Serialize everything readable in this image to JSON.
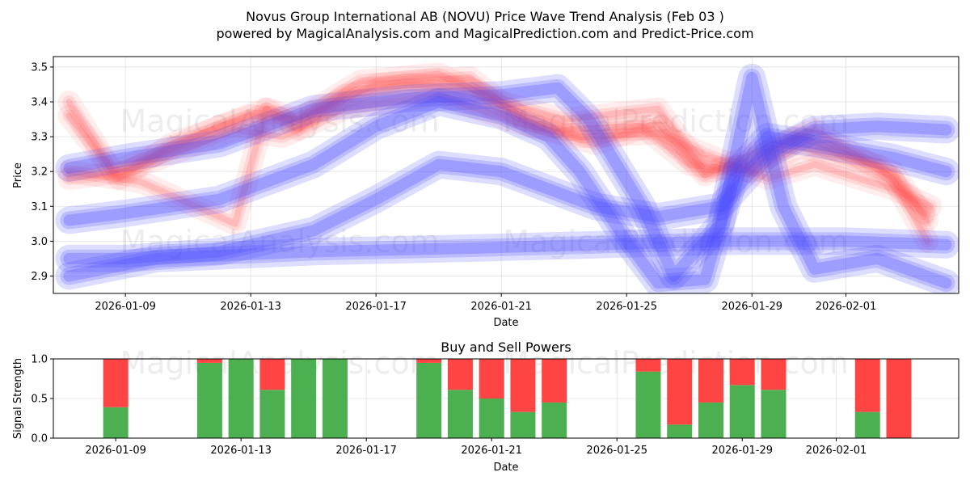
{
  "title_line1": "Novus Group International AB (NOVU) Price Wave Trend Analysis (Feb 03 )",
  "title_line2": "powered by MagicalAnalysis.com and MagicalPrediction.com and Predict-Price.com",
  "watermarks": [
    "MagicalAnalysis.com",
    "MagicalPrediction.com"
  ],
  "colors": {
    "buy": "#4caf50",
    "sell": "#ff4444",
    "wave_red": "#ff6666",
    "wave_blue": "#4444ff"
  },
  "chart_data": [
    {
      "type": "line",
      "name": "price-wave",
      "xlabel": "Date",
      "ylabel": "Price",
      "xlim": [
        "2026-01-06.7",
        "2026-02-04.6"
      ],
      "ylim": [
        2.85,
        3.53
      ],
      "y_ticks": [
        2.9,
        3.0,
        3.1,
        3.2,
        3.3,
        3.4,
        3.5
      ],
      "y_tick_labels": [
        "2.9",
        "3.0",
        "3.1",
        "3.2",
        "3.3",
        "3.4",
        "3.5"
      ],
      "x_ticks": [
        "2026-01-09",
        "2026-01-13",
        "2026-01-17",
        "2026-01-21",
        "2026-01-25",
        "2026-01-29",
        "2026-02-01"
      ],
      "grid": true,
      "series": [
        {
          "name": "red wave 1",
          "color": "#ff4444",
          "points": [
            [
              "2026-01-07.2",
              3.4
            ],
            [
              "2026-01-08.6",
              3.2
            ],
            [
              "2026-01-10",
              3.25
            ],
            [
              "2026-01-12",
              3.33
            ],
            [
              "2026-01-13.5",
              3.38
            ],
            [
              "2026-01-14.5",
              3.32
            ],
            [
              "2026-01-16",
              3.42
            ],
            [
              "2026-01-18",
              3.45
            ],
            [
              "2026-01-20",
              3.44
            ],
            [
              "2026-01-21.6",
              3.36
            ],
            [
              "2026-01-23",
              3.32
            ],
            [
              "2026-01-25.5",
              3.33
            ],
            [
              "2026-01-27",
              3.22
            ],
            [
              "2026-01-29",
              3.2
            ],
            [
              "2026-01-30.5",
              3.27
            ],
            [
              "2026-02-02",
              3.22
            ],
            [
              "2026-02-03.5",
              3.08
            ]
          ]
        },
        {
          "name": "red wave 2",
          "color": "#ff4444",
          "points": [
            [
              "2026-01-07.2",
              3.36
            ],
            [
              "2026-01-08.8",
              3.18
            ],
            [
              "2026-01-10.5",
              3.28
            ],
            [
              "2026-01-13",
              3.36
            ],
            [
              "2026-01-14.5",
              3.35
            ],
            [
              "2026-01-16.5",
              3.46
            ],
            [
              "2026-01-19",
              3.48
            ],
            [
              "2026-01-21",
              3.4
            ],
            [
              "2026-01-23",
              3.35
            ],
            [
              "2026-01-26",
              3.38
            ],
            [
              "2026-01-27.5",
              3.2
            ],
            [
              "2026-01-29",
              3.22
            ],
            [
              "2026-01-30.5",
              3.3
            ],
            [
              "2026-02-02.5",
              3.2
            ],
            [
              "2026-02-03.6",
              3.06
            ]
          ]
        },
        {
          "name": "red wave 3",
          "color": "#ff4444",
          "points": [
            [
              "2026-01-07.2",
              3.18
            ],
            [
              "2026-01-09",
              3.2
            ],
            [
              "2026-01-12.5",
              3.32
            ],
            [
              "2026-01-14",
              3.3
            ],
            [
              "2026-01-16",
              3.38
            ],
            [
              "2026-01-19",
              3.42
            ],
            [
              "2026-01-21.5",
              3.34
            ],
            [
              "2026-01-23.5",
              3.3
            ],
            [
              "2026-01-26",
              3.31
            ],
            [
              "2026-01-27.5",
              3.25
            ],
            [
              "2026-01-29.5",
              3.18
            ],
            [
              "2026-01-31",
              3.22
            ],
            [
              "2026-02-02.5",
              3.15
            ],
            [
              "2026-02-03.7",
              3.1
            ]
          ]
        },
        {
          "name": "red wave 4",
          "color": "#ff4444",
          "points": [
            [
              "2026-01-07.2",
              3.2
            ],
            [
              "2026-01-09.5",
              3.17
            ],
            [
              "2026-01-12.5",
              3.05
            ],
            [
              "2026-01-13.5",
              3.38
            ],
            [
              "2026-01-14.5",
              3.35
            ],
            [
              "2026-01-17",
              3.45
            ],
            [
              "2026-01-20",
              3.47
            ],
            [
              "2026-01-22",
              3.33
            ],
            [
              "2026-01-24",
              3.28
            ],
            [
              "2026-01-26",
              3.34
            ],
            [
              "2026-01-27.5",
              3.19
            ],
            [
              "2026-01-29",
              3.25
            ],
            [
              "2026-01-31",
              3.32
            ],
            [
              "2026-02-02.5",
              3.18
            ],
            [
              "2026-02-03.6",
              3.0
            ]
          ]
        },
        {
          "name": "blue wave 1",
          "color": "#4444ff",
          "points": [
            [
              "2026-01-07.2",
              3.06
            ],
            [
              "2026-01-09",
              3.08
            ],
            [
              "2026-01-12",
              3.12
            ],
            [
              "2026-01-15",
              3.22
            ],
            [
              "2026-01-17",
              3.33
            ],
            [
              "2026-01-19",
              3.4
            ],
            [
              "2026-01-21",
              3.36
            ],
            [
              "2026-01-22.5",
              3.3
            ],
            [
              "2026-01-23.5",
              3.2
            ],
            [
              "2026-01-25",
              3.0
            ],
            [
              "2026-01-26",
              2.88
            ],
            [
              "2026-01-27.5",
              2.89
            ],
            [
              "2026-01-28.5",
              3.2
            ],
            [
              "2026-01-29.5",
              3.3
            ],
            [
              "2026-01-31",
              3.28
            ],
            [
              "2026-02-02.5",
              3.24
            ],
            [
              "2026-02-04.2",
              3.2
            ]
          ]
        },
        {
          "name": "blue wave 2",
          "color": "#4444ff",
          "points": [
            [
              "2026-01-07.2",
              3.21
            ],
            [
              "2026-01-09",
              3.24
            ],
            [
              "2026-01-12",
              3.28
            ],
            [
              "2026-01-15",
              3.38
            ],
            [
              "2026-01-18",
              3.41
            ],
            [
              "2026-01-21",
              3.42
            ],
            [
              "2026-01-22.8",
              3.44
            ],
            [
              "2026-01-23.8",
              3.35
            ],
            [
              "2026-01-25.5",
              3.1
            ],
            [
              "2026-01-26.5",
              2.9
            ],
            [
              "2026-01-28",
              3.05
            ],
            [
              "2026-01-29",
              3.47
            ],
            [
              "2026-01-30",
              3.1
            ],
            [
              "2026-01-31",
              2.92
            ],
            [
              "2026-02-02",
              2.95
            ],
            [
              "2026-02-04.2",
              2.88
            ]
          ]
        },
        {
          "name": "blue wave 3",
          "color": "#4444ff",
          "points": [
            [
              "2026-01-07.2",
              2.95
            ],
            [
              "2026-01-09",
              2.95
            ],
            [
              "2026-01-12",
              2.97
            ],
            [
              "2026-01-15",
              3.03
            ],
            [
              "2026-01-17",
              3.12
            ],
            [
              "2026-01-19",
              3.22
            ],
            [
              "2026-01-21",
              3.2
            ],
            [
              "2026-01-22.5",
              3.15
            ],
            [
              "2026-01-24",
              3.1
            ],
            [
              "2026-01-26",
              3.07
            ],
            [
              "2026-01-28",
              3.1
            ],
            [
              "2026-01-29.5",
              3.25
            ],
            [
              "2026-01-31",
              3.32
            ],
            [
              "2026-02-02",
              3.33
            ],
            [
              "2026-02-04.2",
              3.32
            ]
          ]
        },
        {
          "name": "blue wave 4",
          "color": "#4444ff",
          "points": [
            [
              "2026-01-07.2",
              2.9
            ],
            [
              "2026-01-10",
              2.95
            ],
            [
              "2026-01-15",
              2.97
            ],
            [
              "2026-01-20",
              2.98
            ],
            [
              "2026-01-24",
              2.99
            ],
            [
              "2026-01-28",
              3.0
            ],
            [
              "2026-02-01",
              3.0
            ],
            [
              "2026-02-04.2",
              2.99
            ]
          ]
        }
      ]
    },
    {
      "type": "bar",
      "name": "buy-sell-powers",
      "title": "Buy and Sell Powers",
      "xlabel": "Date",
      "ylabel": "Signal Strength",
      "ylim": [
        0.0,
        1.0
      ],
      "y_tick_labels": [
        "0.0",
        "0.5",
        "1.0"
      ],
      "x_ticks": [
        "2026-01-09",
        "2026-01-13",
        "2026-01-17",
        "2026-01-21",
        "2026-01-25",
        "2026-01-29",
        "2026-02-01"
      ],
      "grid": true,
      "categories": [
        "2026-01-09",
        "2026-01-12",
        "2026-01-13",
        "2026-01-14",
        "2026-01-15",
        "2026-01-16",
        "2026-01-19",
        "2026-01-20",
        "2026-01-21",
        "2026-01-22",
        "2026-01-23",
        "2026-01-26",
        "2026-01-27",
        "2026-01-28",
        "2026-01-29",
        "2026-01-30",
        "2026-02-02",
        "2026-02-03"
      ],
      "series": [
        {
          "name": "Buy",
          "color": "#4caf50",
          "values": [
            0.39,
            0.95,
            1.0,
            0.61,
            1.0,
            1.0,
            0.95,
            0.61,
            0.5,
            0.33,
            0.45,
            0.84,
            0.17,
            0.45,
            0.67,
            0.61,
            0.33,
            0.0
          ]
        },
        {
          "name": "Sell",
          "color": "#ff4444",
          "values": [
            0.61,
            0.05,
            0.0,
            0.39,
            0.0,
            0.0,
            0.05,
            0.39,
            0.5,
            0.67,
            0.55,
            0.16,
            0.83,
            0.55,
            0.33,
            0.39,
            0.67,
            1.0
          ]
        }
      ]
    }
  ]
}
